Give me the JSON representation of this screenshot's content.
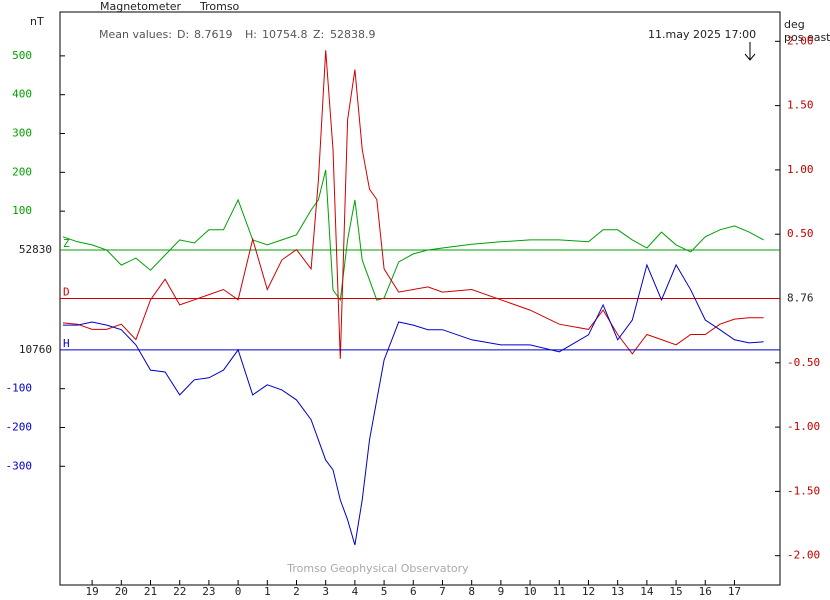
{
  "chart_data": {
    "type": "line",
    "title": "Magnetometer",
    "station": "Tromso",
    "mean_values_label": "Mean values:",
    "mean_values": [
      {
        "name": "D:",
        "value": 8.7619
      },
      {
        "name": "H:",
        "value": 10754.8
      },
      {
        "name": "Z:",
        "value": 52838.9
      }
    ],
    "timestamp": "11.may 2025 17:00",
    "footer": "Tromso Geophysical Observatory",
    "y_label": "nT",
    "y2_label": [
      "deg",
      "pos east"
    ],
    "x": [
      -1,
      -0.5,
      0,
      0.5,
      1,
      1.5,
      2,
      2.5,
      3,
      3.5,
      4,
      4.5,
      5,
      5.5,
      6,
      6.5,
      7,
      7.5,
      7.75,
      8,
      8.25,
      8.5,
      8.75,
      9,
      9.25,
      9.5,
      9.75,
      10,
      10.5,
      11,
      11.5,
      12,
      13,
      14,
      15,
      16,
      17,
      17.5,
      18,
      18.5,
      19,
      19.5,
      20,
      20.5,
      21,
      21.5,
      22,
      22.5,
      23
    ],
    "xlim": [
      -1.1,
      23.56
    ],
    "xticks": [
      {
        "value": 0,
        "label": "19"
      },
      {
        "value": 1,
        "label": "20"
      },
      {
        "value": 2,
        "label": "21"
      },
      {
        "value": 3,
        "label": "22"
      },
      {
        "value": 4,
        "label": "23"
      },
      {
        "value": 5,
        "label": "0"
      },
      {
        "value": 6,
        "label": "1"
      },
      {
        "value": 7,
        "label": "2"
      },
      {
        "value": 8,
        "label": "3"
      },
      {
        "value": 9,
        "label": "4"
      },
      {
        "value": 10,
        "label": "5"
      },
      {
        "value": 11,
        "label": "6"
      },
      {
        "value": 12,
        "label": "7"
      },
      {
        "value": 13,
        "label": "8"
      },
      {
        "value": 14,
        "label": "9"
      },
      {
        "value": 15,
        "label": "10"
      },
      {
        "value": 16,
        "label": "11"
      },
      {
        "value": 17,
        "label": "12"
      },
      {
        "value": 18,
        "label": "13"
      },
      {
        "value": 19,
        "label": "14"
      },
      {
        "value": 20,
        "label": "15"
      },
      {
        "value": 21,
        "label": "16"
      },
      {
        "value": 22,
        "label": "17"
      }
    ],
    "series": [
      {
        "name": "Z",
        "color": "#00a000",
        "baseline": 52830,
        "ylim": [
          -863,
          613
        ],
        "yticks": [
          500,
          400,
          300,
          200,
          100
        ],
        "values": [
          34,
          21,
          13,
          0,
          -39,
          -21,
          -52,
          -13,
          26,
          18,
          52,
          52,
          129,
          26,
          13,
          26,
          39,
          103,
          129,
          206,
          -103,
          -129,
          26,
          129,
          -26,
          -77,
          -129,
          -124,
          -31,
          -10,
          0,
          5,
          15,
          21,
          26,
          26,
          21,
          52,
          52,
          26,
          5,
          46,
          13,
          -5,
          34,
          52,
          62,
          46,
          26
        ]
      },
      {
        "name": "D",
        "color": "#d00000",
        "axis": "y2",
        "baseline": 8.76,
        "values": [
          -0.19,
          -0.2,
          -0.24,
          -0.24,
          -0.2,
          -0.32,
          -0.01,
          0.15,
          -0.05,
          -0.01,
          0.03,
          0.07,
          -0.01,
          0.46,
          0.07,
          0.3,
          0.38,
          0.23,
          0.92,
          1.93,
          1.16,
          -0.47,
          1.39,
          1.78,
          1.16,
          0.85,
          0.77,
          0.23,
          0.05,
          0.07,
          0.09,
          0.05,
          0.07,
          -0.01,
          -0.09,
          -0.2,
          -0.24,
          -0.09,
          -0.28,
          -0.43,
          -0.28,
          -0.32,
          -0.36,
          -0.28,
          -0.28,
          -0.2,
          -0.16,
          -0.15,
          -0.15
        ]
      },
      {
        "name": "H",
        "color": "#0000c8",
        "baseline": 10760,
        "ylim": [
          -606,
          871
        ],
        "yticks": [
          -100,
          -200,
          -300
        ],
        "values": [
          64,
          64,
          72,
          64,
          52,
          13,
          -52,
          -57,
          -116,
          -77,
          -72,
          -52,
          0,
          -116,
          -90,
          -103,
          -129,
          -180,
          -232,
          -284,
          -309,
          -387,
          -438,
          -503,
          -387,
          -232,
          -129,
          -26,
          72,
          64,
          52,
          52,
          26,
          13,
          13,
          -5,
          39,
          116,
          26,
          77,
          219,
          129,
          219,
          155,
          77,
          52,
          26,
          18,
          21
        ]
      }
    ],
    "y2lim": [
      -2.228,
      2.228
    ],
    "y2ticks": [
      {
        "value": 2,
        "label": "2.00"
      },
      {
        "value": 1.5,
        "label": "1.50"
      },
      {
        "value": 1,
        "label": "1.00"
      },
      {
        "value": 0.5,
        "label": "0.50"
      },
      {
        "value": -0.5,
        "label": "-0.50"
      },
      {
        "value": -1,
        "label": "-1.00"
      },
      {
        "value": -1.5,
        "label": "-1.50"
      },
      {
        "value": -2,
        "label": "-2.00"
      }
    ]
  }
}
